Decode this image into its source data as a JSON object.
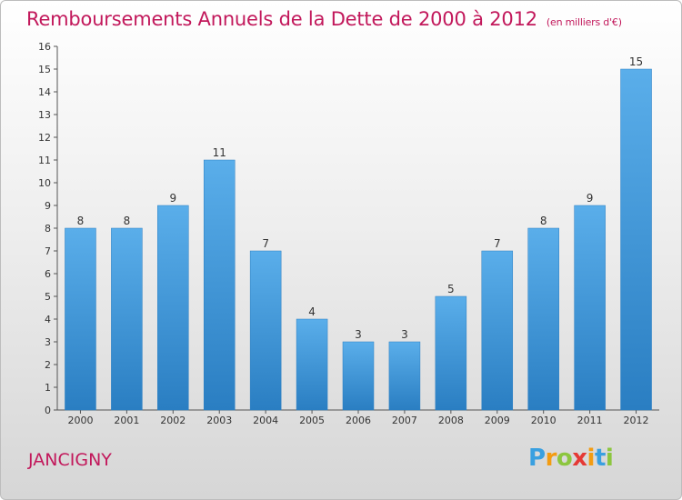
{
  "title": "Remboursements Annuels de la Dette de 2000 à 2012",
  "subtitle": "(en milliers d'€)",
  "commune": "JANCIGNY",
  "logo": {
    "letters": [
      "P",
      "r",
      "o",
      "x",
      "i",
      "t",
      "i"
    ],
    "colors": [
      "#3aa0e0",
      "#f39c12",
      "#8cc63f",
      "#e53935",
      "#f39c12",
      "#3aa0e0",
      "#8cc63f"
    ]
  },
  "colors": {
    "title": "#c2185b",
    "bar_light": "#5aaeea",
    "bar_dark": "#2a7ec2",
    "axis": "#555555"
  },
  "chart_data": {
    "type": "bar",
    "categories": [
      "2000",
      "2001",
      "2002",
      "2003",
      "2004",
      "2005",
      "2006",
      "2007",
      "2008",
      "2009",
      "2010",
      "2011",
      "2012"
    ],
    "values": [
      8,
      8,
      9,
      11,
      7,
      4,
      3,
      3,
      5,
      7,
      8,
      9,
      15
    ],
    "ylim": [
      0,
      16
    ],
    "yticks": [
      0,
      1,
      2,
      3,
      4,
      5,
      6,
      7,
      8,
      9,
      10,
      11,
      12,
      13,
      14,
      15,
      16
    ],
    "data_labels": true,
    "grid": false
  }
}
